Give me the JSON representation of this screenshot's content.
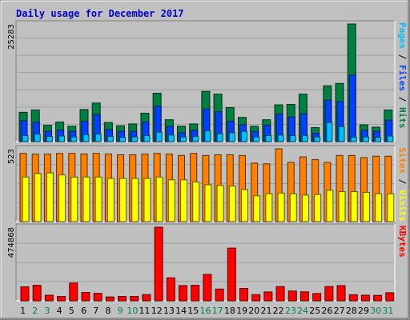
{
  "chart_data": {
    "type": "bar",
    "title": "Daily usage for December 2017",
    "categories": [
      "1",
      "2",
      "3",
      "4",
      "5",
      "6",
      "7",
      "8",
      "9",
      "10",
      "11",
      "12",
      "13",
      "14",
      "15",
      "16",
      "17",
      "18",
      "19",
      "20",
      "21",
      "22",
      "23",
      "24",
      "25",
      "26",
      "27",
      "28",
      "29",
      "30",
      "31"
    ],
    "weekend_days": [
      "2",
      "3",
      "9",
      "10",
      "16",
      "17",
      "23",
      "24",
      "30",
      "31"
    ],
    "panels": [
      {
        "id": "hits_files_pages",
        "ymax_label": "25283",
        "ylim": [
          0,
          25283
        ],
        "right_label_parts": [
          "Pages",
          " / ",
          "Files",
          " / ",
          "Hits"
        ],
        "series": [
          {
            "name": "Hits",
            "color": "#008040",
            "values": [
              6300,
              6800,
              3500,
              4200,
              3300,
              6900,
              8300,
              4100,
              3400,
              3800,
              6100,
              10400,
              4700,
              3300,
              3800,
              10800,
              10200,
              7300,
              5200,
              3300,
              4700,
              7900,
              8000,
              10200,
              3000,
              12000,
              12500,
              25283,
              3600,
              3100,
              6800
            ]
          },
          {
            "name": "Files",
            "color": "#0040ff",
            "values": [
              4500,
              4200,
              2200,
              2500,
              2200,
              4400,
              5800,
              2600,
              2200,
              2200,
              4200,
              7600,
              3300,
              1900,
              2400,
              7000,
              6400,
              4400,
              3600,
              2200,
              3500,
              5900,
              5300,
              6000,
              1800,
              8900,
              8600,
              14300,
              2400,
              2200,
              4600
            ]
          },
          {
            "name": "Pages",
            "color": "#00c0ff",
            "values": [
              1300,
              1600,
              1100,
              1200,
              1000,
              1500,
              1600,
              1100,
              900,
              1000,
              1300,
              2000,
              1400,
              1000,
              1100,
              2300,
              1700,
              1900,
              2200,
              1000,
              1300,
              1400,
              1300,
              1300,
              1000,
              4100,
              3200,
              900,
              1000,
              900,
              1200
            ]
          }
        ]
      },
      {
        "id": "sites_visits",
        "ymax_label": "523",
        "ylim": [
          0,
          523
        ],
        "right_label_parts": [
          "Sites",
          " / ",
          "Visits"
        ],
        "series": [
          {
            "name": "Visits",
            "color": "#ffff00",
            "values": [
              320,
              345,
              350,
              335,
              320,
              320,
              320,
              310,
              310,
              310,
              310,
              320,
              300,
              300,
              285,
              265,
              260,
              255,
              230,
              185,
              200,
              205,
              200,
              190,
              195,
              225,
              215,
              215,
              210,
              200,
              200
            ]
          },
          {
            "name": "Sites",
            "color": "#ff8000",
            "values": [
              490,
              485,
              485,
              490,
              490,
              485,
              490,
              485,
              480,
              480,
              485,
              490,
              485,
              475,
              490,
              475,
              480,
              480,
              475,
              420,
              415,
              523,
              425,
              465,
              445,
              425,
              475,
              475,
              460,
              470,
              470
            ]
          }
        ]
      },
      {
        "id": "kbytes",
        "ymax_label": "474868",
        "ylim": [
          0,
          474868
        ],
        "right_label_parts": [
          "KBytes"
        ],
        "series": [
          {
            "name": "KBytes",
            "color": "#ff0000",
            "values": [
              90000,
              100000,
              36000,
              28000,
              115000,
              54000,
              48000,
              25000,
              28000,
              28000,
              40000,
              474868,
              148000,
              98000,
              100000,
              170000,
              76000,
              340000,
              80000,
              40000,
              57000,
              92000,
              63000,
              58000,
              47000,
              92000,
              98000,
              39000,
              36000,
              35000,
              52000
            ]
          }
        ]
      }
    ]
  },
  "colors": {
    "background": "#c0c0c0",
    "plot_bg": "#c0c0c0",
    "title": "#0000cc",
    "tick_weekday": "#000000",
    "tick_weekend": "#00804a",
    "separator": "#000000",
    "pages": "#00c0ff",
    "files": "#0040ff",
    "hits": "#008040",
    "sites": "#ff8000",
    "visits": "#ffff00",
    "kbytes": "#ff0000"
  }
}
